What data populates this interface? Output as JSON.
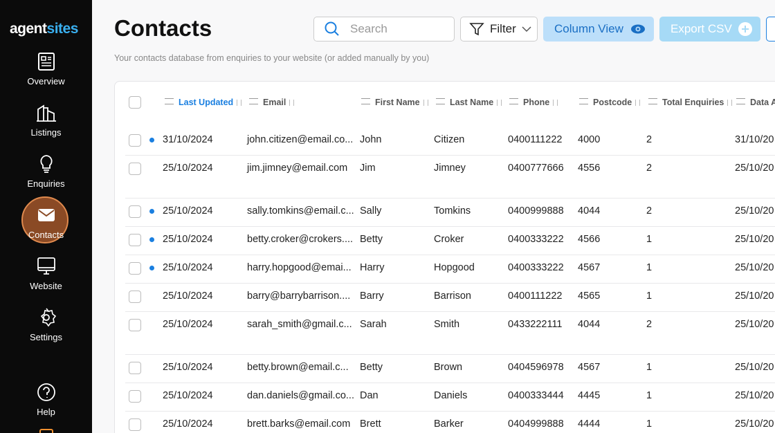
{
  "sidebar": {
    "logo": [
      "agent",
      "sites"
    ],
    "nav": [
      "Overview",
      "Listings",
      "Enquiries",
      "Contacts",
      "Website",
      "Settings",
      "Help"
    ],
    "active": 3
  },
  "header": {
    "title": "Contacts",
    "subtitle": "Your contacts database from enquiries to your website (or added manually by you)",
    "search_placeholder": "Search",
    "buttons": [
      "Filter",
      "Column View",
      "Export CSV"
    ]
  },
  "table": {
    "columns": [
      "Last Updated",
      "Email",
      "First Name",
      "Last Name",
      "Phone",
      "Postcode",
      "Total Enquiries",
      "Data A"
    ],
    "sorted": 0,
    "rows": [
      {
        "new": true,
        "cells": [
          "31/10/2024",
          "john.citizen@email.co...",
          "John",
          "Citizen",
          "0400111222",
          "4000",
          "2",
          "31/10/20"
        ]
      },
      {
        "new": false,
        "cells": [
          "25/10/2024",
          "jim.jimney@email.com",
          "Jim",
          "Jimney",
          "0400777666",
          "4556",
          "2",
          "25/10/20"
        ]
      },
      {
        "new": true,
        "cells": [
          "25/10/2024",
          "sally.tomkins@email.c...",
          "Sally",
          "Tomkins",
          "0400999888",
          "4044",
          "2",
          "25/10/20"
        ]
      },
      {
        "new": true,
        "cells": [
          "25/10/2024",
          "betty.croker@crokers....",
          "Betty",
          "Croker",
          "0400333222",
          "4566",
          "1",
          "25/10/20"
        ]
      },
      {
        "new": true,
        "cells": [
          "25/10/2024",
          "harry.hopgood@emai...",
          "Harry",
          "Hopgood",
          "0400333222",
          "4567",
          "1",
          "25/10/20"
        ]
      },
      {
        "new": false,
        "cells": [
          "25/10/2024",
          "barry@barrybarrison....",
          "Barry",
          "Barrison",
          "0400111222",
          "4565",
          "1",
          "25/10/20"
        ]
      },
      {
        "new": false,
        "cells": [
          "25/10/2024",
          "sarah_smith@gmail.c...",
          "Sarah",
          "Smith",
          "0433222111",
          "4044",
          "2",
          "25/10/20"
        ]
      },
      {
        "new": false,
        "cells": [
          "25/10/2024",
          "betty.brown@email.c...",
          "Betty",
          "Brown",
          "0404596978",
          "4567",
          "1",
          "25/10/20"
        ]
      },
      {
        "new": false,
        "cells": [
          "25/10/2024",
          "dan.daniels@gmail.co...",
          "Dan",
          "Daniels",
          "0400333444",
          "4445",
          "1",
          "25/10/20"
        ]
      },
      {
        "new": false,
        "cells": [
          "25/10/2024",
          "brett.barks@email.com",
          "Brett",
          "Barker",
          "0404999888",
          "4444",
          "1",
          "25/10/20"
        ]
      }
    ]
  }
}
